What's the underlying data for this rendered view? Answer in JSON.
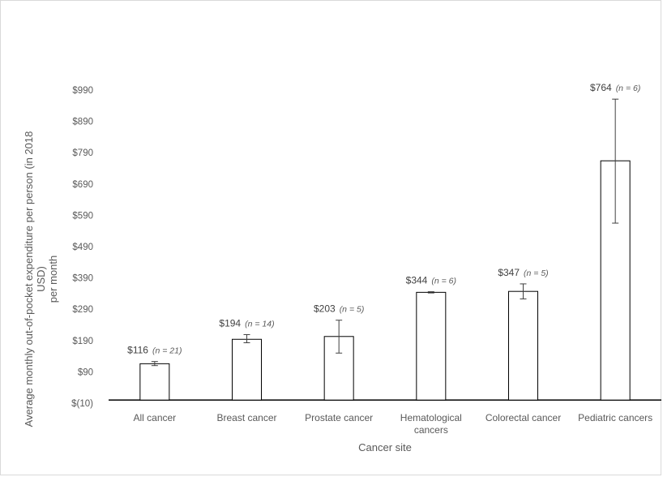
{
  "chart_data": {
    "type": "bar",
    "title": "",
    "xlabel": "Cancer site",
    "ylabel_lines": [
      "Average monthly out-of-pocket expenditure per person (in 2018",
      "USD)",
      "per month"
    ],
    "ylim": [
      -10,
      990
    ],
    "y_ticks": [
      {
        "value": 990,
        "label": "$990"
      },
      {
        "value": 890,
        "label": "$890"
      },
      {
        "value": 790,
        "label": "$790"
      },
      {
        "value": 690,
        "label": "$690"
      },
      {
        "value": 590,
        "label": "$590"
      },
      {
        "value": 490,
        "label": "$490"
      },
      {
        "value": 390,
        "label": "$390"
      },
      {
        "value": 290,
        "label": "$290"
      },
      {
        "value": 190,
        "label": "$190"
      },
      {
        "value": 90,
        "label": "$90"
      },
      {
        "value": -10,
        "label": "$(10)"
      }
    ],
    "categories": [
      [
        "All cancer"
      ],
      [
        "Breast cancer"
      ],
      [
        "Prostate cancer"
      ],
      [
        "Hematological",
        "cancers"
      ],
      [
        "Colorectal cancer"
      ],
      [
        "Pediatric cancers"
      ]
    ],
    "values": [
      116,
      194,
      203,
      344,
      347,
      764
    ],
    "error_low": [
      110,
      183,
      150,
      342,
      323,
      565
    ],
    "error_high": [
      123,
      209,
      255,
      346,
      371,
      961
    ],
    "value_labels": [
      "$116",
      "$194",
      "$203",
      "$344",
      "$347",
      "$764"
    ],
    "n_labels": [
      "(n = 21)",
      "(n = 14)",
      "(n = 5)",
      "(n = 6)",
      "(n = 5)",
      "(n = 6)"
    ],
    "grid": false,
    "legend": "none"
  }
}
